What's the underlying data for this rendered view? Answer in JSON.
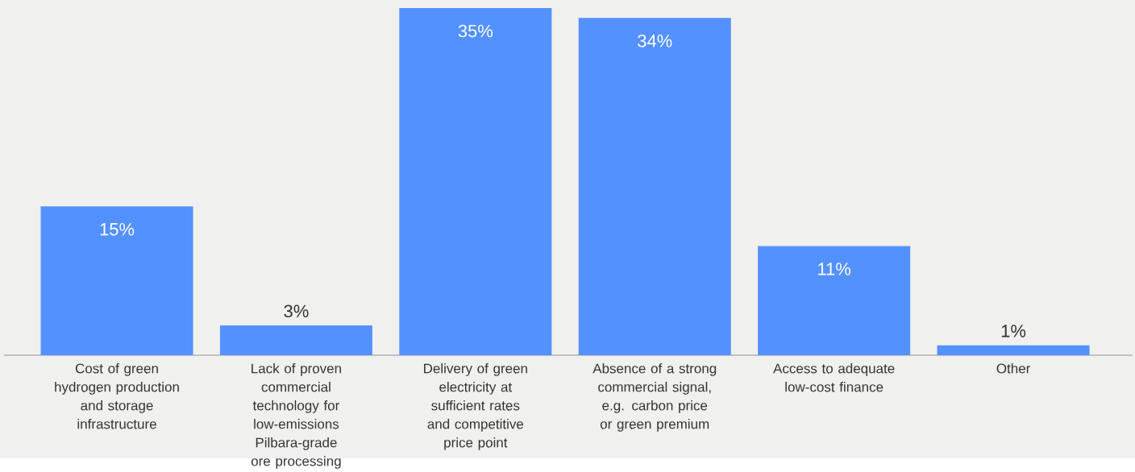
{
  "chart_data": {
    "type": "bar",
    "categories": [
      "Cost of green hydrogen production and storage infrastructure",
      "Lack of proven commercial technology for low-emissions Pilbara-grade ore processing",
      "Delivery of green electricity at sufficient rates and competitive price point",
      "Absence of a strong commercial signal, e.g. carbon price or green premium",
      "Access to adequate low-cost finance",
      "Other"
    ],
    "values": [
      15,
      3,
      35,
      34,
      11,
      1
    ],
    "value_labels": [
      "15%",
      "3%",
      "35%",
      "34%",
      "11%",
      "1%"
    ],
    "color": "#5391fe"
  }
}
